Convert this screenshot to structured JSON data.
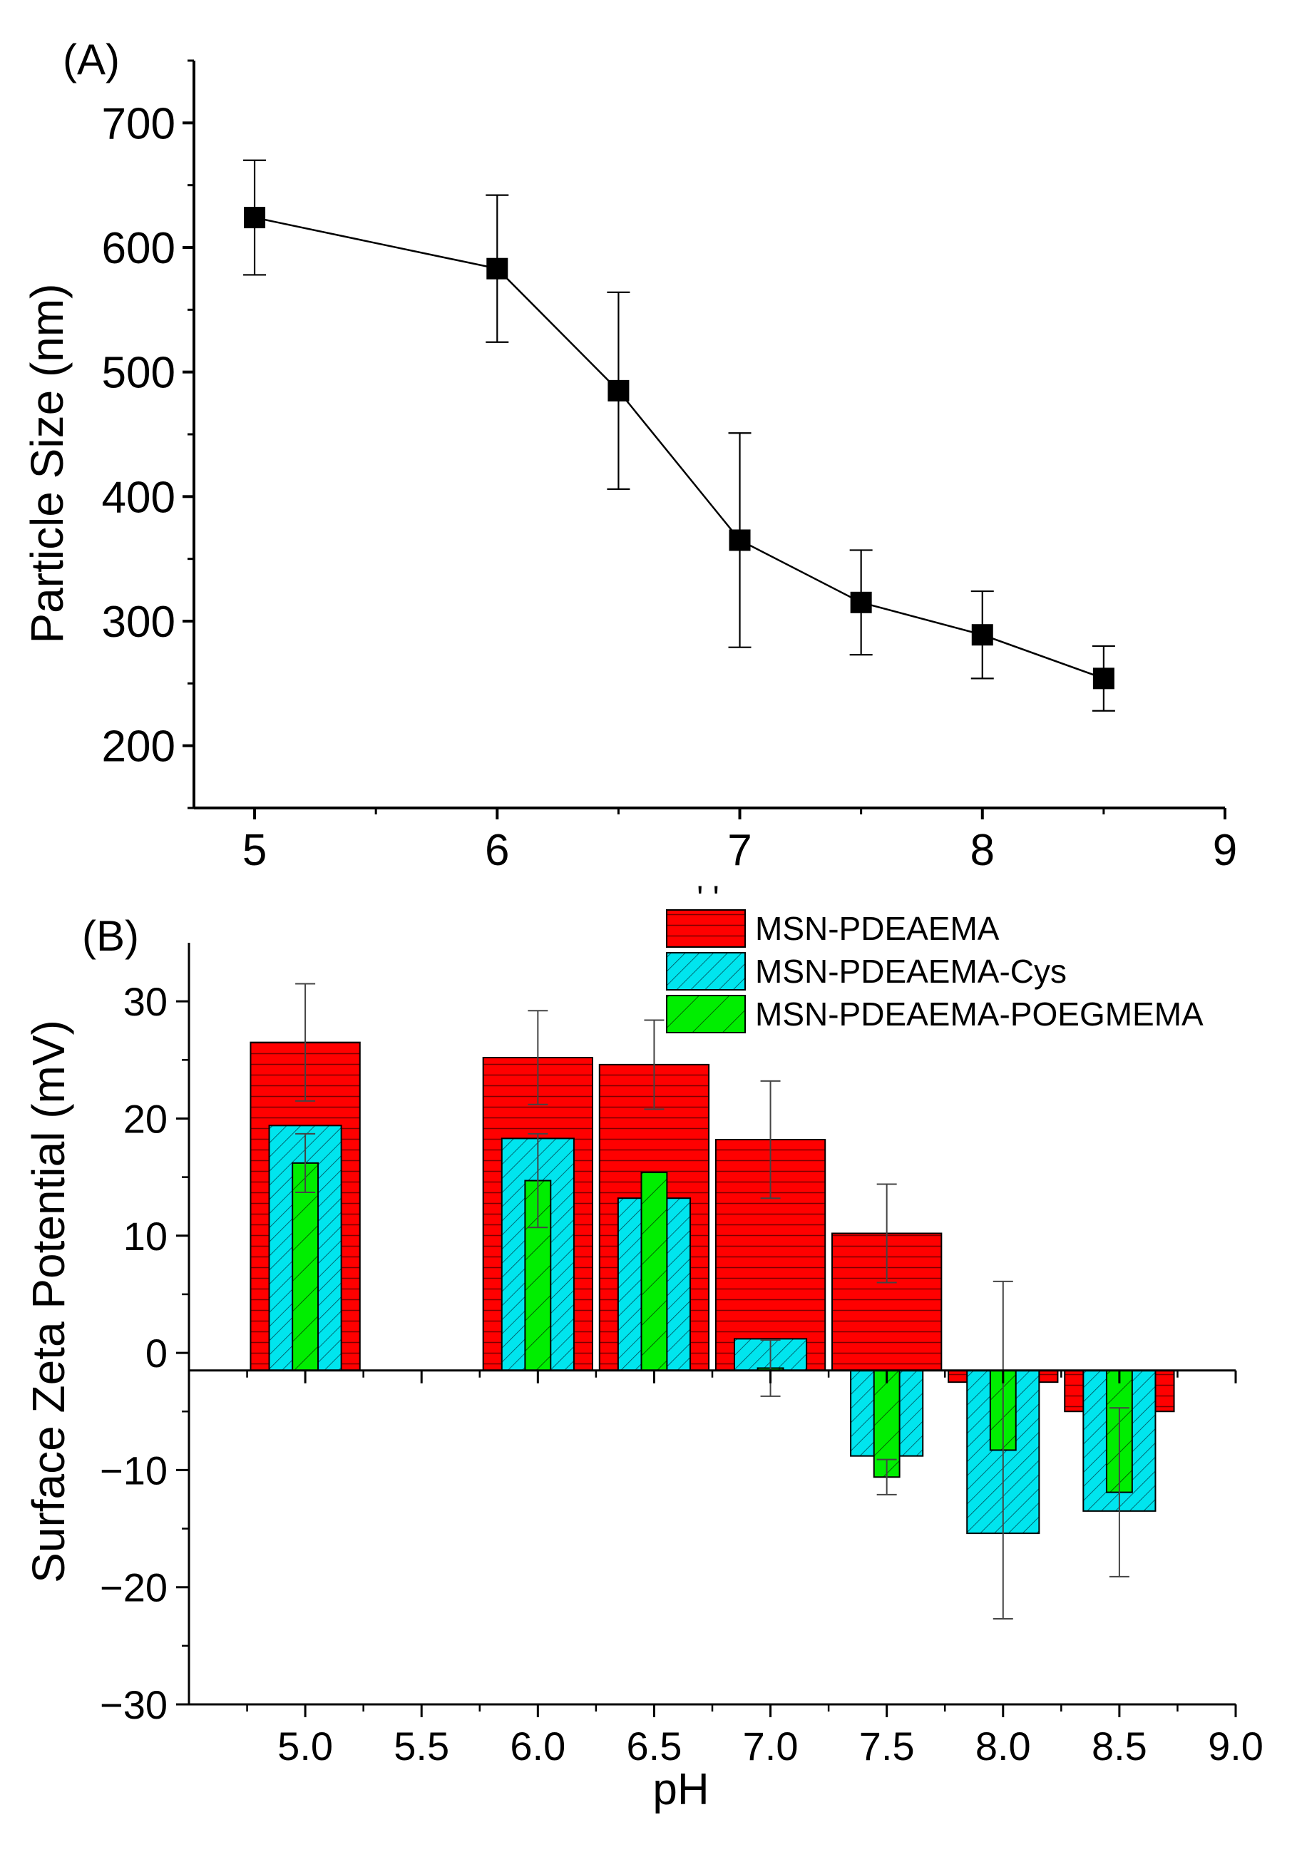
{
  "chart_data": [
    {
      "type": "line",
      "panel_label": "(A)",
      "title": "",
      "xlabel": "",
      "ylabel": "Particle Size (nm)",
      "xlim": [
        4.75,
        9
      ],
      "ylim": [
        150,
        750
      ],
      "xticks": [
        5,
        5.5,
        6,
        6.5,
        7,
        7.5,
        8,
        8.5,
        9
      ],
      "xtick_labels": [
        "5",
        "",
        "6",
        "",
        "7",
        "",
        "8",
        "",
        "9"
      ],
      "yticks": [
        200,
        300,
        400,
        500,
        600,
        700
      ],
      "ytick_labels": [
        "200",
        "300",
        "400",
        "500",
        "600",
        "700"
      ],
      "grid": false,
      "series": [
        {
          "marker": "square",
          "color": "#000000",
          "x": [
            5,
            6,
            6.5,
            7,
            7.5,
            8,
            8.5
          ],
          "y": [
            624,
            583,
            485,
            365,
            315,
            289,
            254
          ],
          "error": [
            46,
            59,
            79,
            86,
            42,
            35,
            26
          ]
        }
      ],
      "stray_mark": "' '"
    },
    {
      "type": "bar",
      "panel_label": "(B)",
      "title": "",
      "xlabel": "pH",
      "ylabel": "Surface Zeta Potential (mV)",
      "xlim": [
        4.5,
        9.0
      ],
      "ylim": [
        -30,
        35
      ],
      "baseline": -1.5,
      "xticks": [
        5.0,
        5.5,
        6.0,
        6.5,
        7.0,
        7.5,
        8.0,
        8.5,
        9.0
      ],
      "xtick_labels": [
        "5.0",
        "5.5",
        "6.0",
        "6.5",
        "7.0",
        "7.5",
        "8.0",
        "8.5",
        "9.0"
      ],
      "yticks": [
        -30,
        -20,
        -10,
        0,
        10,
        20,
        30
      ],
      "ytick_labels": [
        "−30",
        "−20",
        "−10",
        "0",
        "10",
        "20",
        "30"
      ],
      "grid": false,
      "legend_position": "top-right",
      "categories": [
        5.0,
        6.0,
        6.5,
        7.0,
        7.5,
        8.0,
        8.5
      ],
      "series": [
        {
          "name": "MSN-PDEAEMA",
          "color": "#ff0000",
          "pattern": "horizontal-lines",
          "values": [
            26.5,
            25.2,
            24.6,
            18.2,
            10.2,
            -2.5,
            -5.0
          ],
          "error": [
            5.0,
            4.0,
            3.8,
            5.0,
            4.2,
            0,
            0
          ]
        },
        {
          "name": "MSN-PDEAEMA-Cys",
          "color": "#00e5ee",
          "pattern": "diagonal-hatch",
          "values": [
            19.4,
            18.3,
            13.2,
            1.2,
            -8.8,
            -15.4,
            -13.5
          ],
          "error": [
            0,
            0,
            0,
            0,
            0,
            0,
            0
          ]
        },
        {
          "name": "MSN-PDEAEMA-POEGMEMA",
          "color": "#00ee00",
          "pattern": "diagonal-hatch",
          "values": [
            16.2,
            14.7,
            15.4,
            -1.3,
            -10.6,
            -8.3,
            -11.9
          ],
          "error": [
            2.5,
            4.0,
            0,
            2.4,
            1.5,
            14.4,
            7.2
          ]
        }
      ]
    }
  ]
}
